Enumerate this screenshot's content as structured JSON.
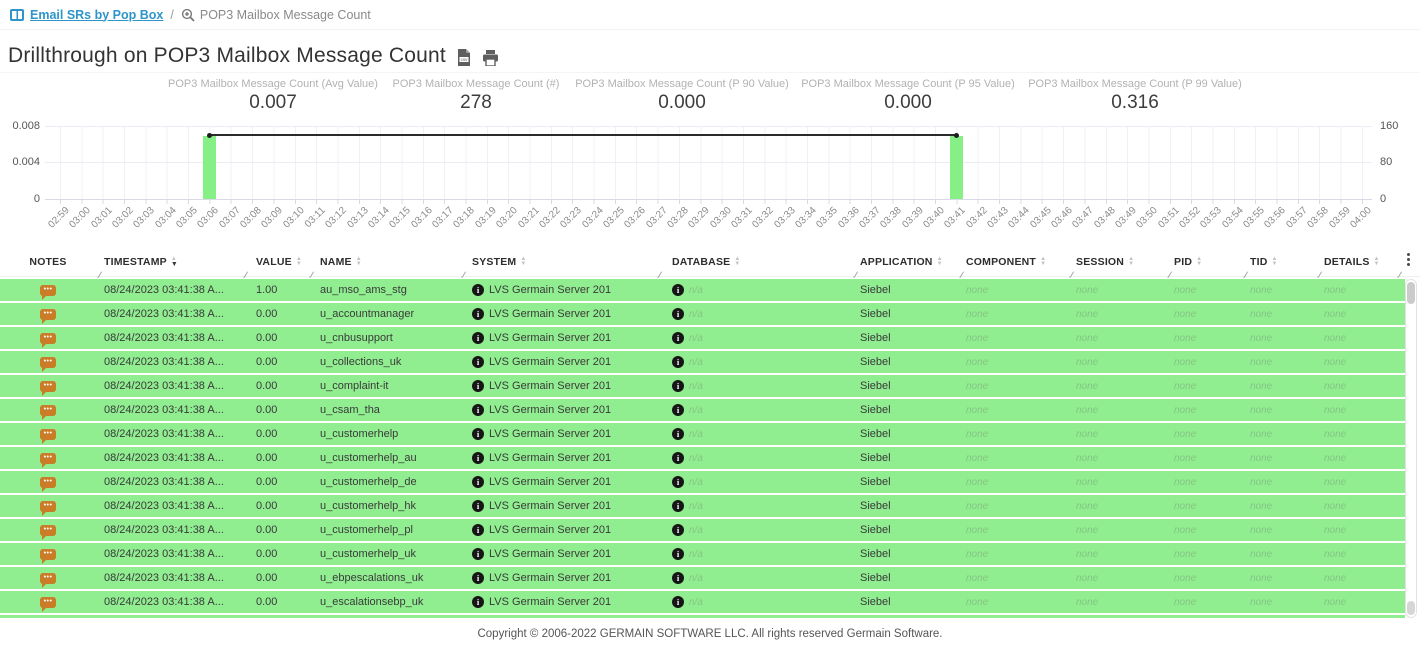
{
  "breadcrumb": {
    "root_label": "Email SRs by Pop Box",
    "separator": "/",
    "current_label": "POP3 Mailbox Message Count"
  },
  "header": {
    "title": "Drillthrough on POP3 Mailbox Message Count"
  },
  "stats": [
    {
      "label": "POP3 Mailbox Message Count (Avg Value)",
      "value": "0.007"
    },
    {
      "label": "POP3 Mailbox Message Count (#)",
      "value": "278"
    },
    {
      "label": "POP3 Mailbox Message Count (P 90 Value)",
      "value": "0.000"
    },
    {
      "label": "POP3 Mailbox Message Count (P 95 Value)",
      "value": "0.000"
    },
    {
      "label": "POP3 Mailbox Message Count (P 99 Value)",
      "value": "0.316"
    }
  ],
  "chart_data": {
    "type": "bar",
    "title": "",
    "x": [
      "02:59",
      "03:00",
      "03:01",
      "03:02",
      "03:03",
      "03:04",
      "03:05",
      "03:06",
      "03:07",
      "03:08",
      "03:09",
      "03:10",
      "03:11",
      "03:12",
      "03:13",
      "03:14",
      "03:15",
      "03:16",
      "03:17",
      "03:18",
      "03:19",
      "03:20",
      "03:21",
      "03:22",
      "03:23",
      "03:24",
      "03:25",
      "03:26",
      "03:27",
      "03:28",
      "03:29",
      "03:30",
      "03:31",
      "03:32",
      "03:33",
      "03:34",
      "03:35",
      "03:36",
      "03:37",
      "03:38",
      "03:39",
      "03:40",
      "03:41",
      "03:42",
      "03:43",
      "03:44",
      "03:45",
      "03:46",
      "03:47",
      "03:48",
      "03:49",
      "03:50",
      "03:51",
      "03:52",
      "03:53",
      "03:54",
      "03:55",
      "03:56",
      "03:57",
      "03:58",
      "03:59",
      "04:00"
    ],
    "y_left": {
      "ticks": [
        "0.008",
        "0.004",
        "0"
      ],
      "max": 0.008
    },
    "y_right": {
      "ticks": [
        "160",
        "80",
        "0"
      ],
      "max": 160
    },
    "grid": true,
    "legend": false,
    "series": [
      {
        "name": "count",
        "type": "bar",
        "color": "#86ef86",
        "points": [
          {
            "x": "03:06",
            "y": 139
          },
          {
            "x": "03:41",
            "y": 139
          }
        ]
      },
      {
        "name": "avg value",
        "type": "line",
        "color": "#2b2b2b",
        "points": [
          {
            "x": "03:06",
            "y": 0.007
          },
          {
            "x": "03:41",
            "y": 0.007
          }
        ]
      }
    ]
  },
  "table": {
    "columns": [
      {
        "label": "NOTES",
        "sortable": false
      },
      {
        "label": "TIMESTAMP",
        "sortable": true,
        "sorted": "desc"
      },
      {
        "label": "VALUE",
        "sortable": true
      },
      {
        "label": "NAME",
        "sortable": true
      },
      {
        "label": "SYSTEM",
        "sortable": true
      },
      {
        "label": "DATABASE",
        "sortable": true
      },
      {
        "label": "APPLICATION",
        "sortable": true
      },
      {
        "label": "COMPONENT",
        "sortable": true
      },
      {
        "label": "SESSION",
        "sortable": true
      },
      {
        "label": "PID",
        "sortable": true
      },
      {
        "label": "TID",
        "sortable": true
      },
      {
        "label": "DETAILS",
        "sortable": true
      }
    ],
    "rows": [
      {
        "timestamp": "08/24/2023 03:41:38 A...",
        "value": "1.00",
        "name": "au_mso_ams_stg",
        "system": "LVS Germain Server 201",
        "database": "n/a",
        "application": "Siebel",
        "component": "none",
        "session": "none",
        "pid": "none",
        "tid": "none",
        "details": "none"
      },
      {
        "timestamp": "08/24/2023 03:41:38 A...",
        "value": "0.00",
        "name": "u_accountmanager",
        "system": "LVS Germain Server 201",
        "database": "n/a",
        "application": "Siebel",
        "component": "none",
        "session": "none",
        "pid": "none",
        "tid": "none",
        "details": "none"
      },
      {
        "timestamp": "08/24/2023 03:41:38 A...",
        "value": "0.00",
        "name": "u_cnbusupport",
        "system": "LVS Germain Server 201",
        "database": "n/a",
        "application": "Siebel",
        "component": "none",
        "session": "none",
        "pid": "none",
        "tid": "none",
        "details": "none"
      },
      {
        "timestamp": "08/24/2023 03:41:38 A...",
        "value": "0.00",
        "name": "u_collections_uk",
        "system": "LVS Germain Server 201",
        "database": "n/a",
        "application": "Siebel",
        "component": "none",
        "session": "none",
        "pid": "none",
        "tid": "none",
        "details": "none"
      },
      {
        "timestamp": "08/24/2023 03:41:38 A...",
        "value": "0.00",
        "name": "u_complaint-it",
        "system": "LVS Germain Server 201",
        "database": "n/a",
        "application": "Siebel",
        "component": "none",
        "session": "none",
        "pid": "none",
        "tid": "none",
        "details": "none"
      },
      {
        "timestamp": "08/24/2023 03:41:38 A...",
        "value": "0.00",
        "name": "u_csam_tha",
        "system": "LVS Germain Server 201",
        "database": "n/a",
        "application": "Siebel",
        "component": "none",
        "session": "none",
        "pid": "none",
        "tid": "none",
        "details": "none"
      },
      {
        "timestamp": "08/24/2023 03:41:38 A...",
        "value": "0.00",
        "name": "u_customerhelp",
        "system": "LVS Germain Server 201",
        "database": "n/a",
        "application": "Siebel",
        "component": "none",
        "session": "none",
        "pid": "none",
        "tid": "none",
        "details": "none"
      },
      {
        "timestamp": "08/24/2023 03:41:38 A...",
        "value": "0.00",
        "name": "u_customerhelp_au",
        "system": "LVS Germain Server 201",
        "database": "n/a",
        "application": "Siebel",
        "component": "none",
        "session": "none",
        "pid": "none",
        "tid": "none",
        "details": "none"
      },
      {
        "timestamp": "08/24/2023 03:41:38 A...",
        "value": "0.00",
        "name": "u_customerhelp_de",
        "system": "LVS Germain Server 201",
        "database": "n/a",
        "application": "Siebel",
        "component": "none",
        "session": "none",
        "pid": "none",
        "tid": "none",
        "details": "none"
      },
      {
        "timestamp": "08/24/2023 03:41:38 A...",
        "value": "0.00",
        "name": "u_customerhelp_hk",
        "system": "LVS Germain Server 201",
        "database": "n/a",
        "application": "Siebel",
        "component": "none",
        "session": "none",
        "pid": "none",
        "tid": "none",
        "details": "none"
      },
      {
        "timestamp": "08/24/2023 03:41:38 A...",
        "value": "0.00",
        "name": "u_customerhelp_pl",
        "system": "LVS Germain Server 201",
        "database": "n/a",
        "application": "Siebel",
        "component": "none",
        "session": "none",
        "pid": "none",
        "tid": "none",
        "details": "none"
      },
      {
        "timestamp": "08/24/2023 03:41:38 A...",
        "value": "0.00",
        "name": "u_customerhelp_uk",
        "system": "LVS Germain Server 201",
        "database": "n/a",
        "application": "Siebel",
        "component": "none",
        "session": "none",
        "pid": "none",
        "tid": "none",
        "details": "none"
      },
      {
        "timestamp": "08/24/2023 03:41:38 A...",
        "value": "0.00",
        "name": "u_ebpescalations_uk",
        "system": "LVS Germain Server 201",
        "database": "n/a",
        "application": "Siebel",
        "component": "none",
        "session": "none",
        "pid": "none",
        "tid": "none",
        "details": "none"
      },
      {
        "timestamp": "08/24/2023 03:41:38 A...",
        "value": "0.00",
        "name": "u_escalationsebp_uk",
        "system": "LVS Germain Server 201",
        "database": "n/a",
        "application": "Siebel",
        "component": "none",
        "session": "none",
        "pid": "none",
        "tid": "none",
        "details": "none"
      }
    ]
  },
  "footer": {
    "copyright": "Copyright © 2006-2022 GERMAIN SOFTWARE LLC. All rights reserved Germain Software."
  }
}
